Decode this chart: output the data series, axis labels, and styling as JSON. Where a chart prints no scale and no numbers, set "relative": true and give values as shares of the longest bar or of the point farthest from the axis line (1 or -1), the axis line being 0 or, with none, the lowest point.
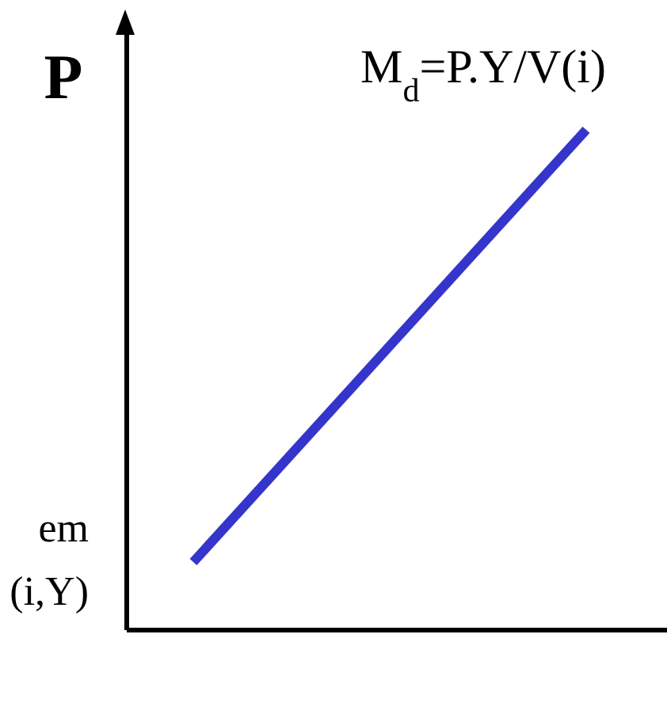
{
  "chart_data": {
    "type": "line",
    "title": "M$_{d}$=P.Y/V(i)",
    "ylabel": "P",
    "annotations": [
      "em",
      "(i,Y)"
    ],
    "categories": [
      null,
      null
    ],
    "relative": true,
    "series": [
      {
        "color": "#3535cc",
        "values": [
          0.136,
          1
        ]
      }
    ],
    "marker": "none",
    "grid": false,
    "legend": false
  }
}
